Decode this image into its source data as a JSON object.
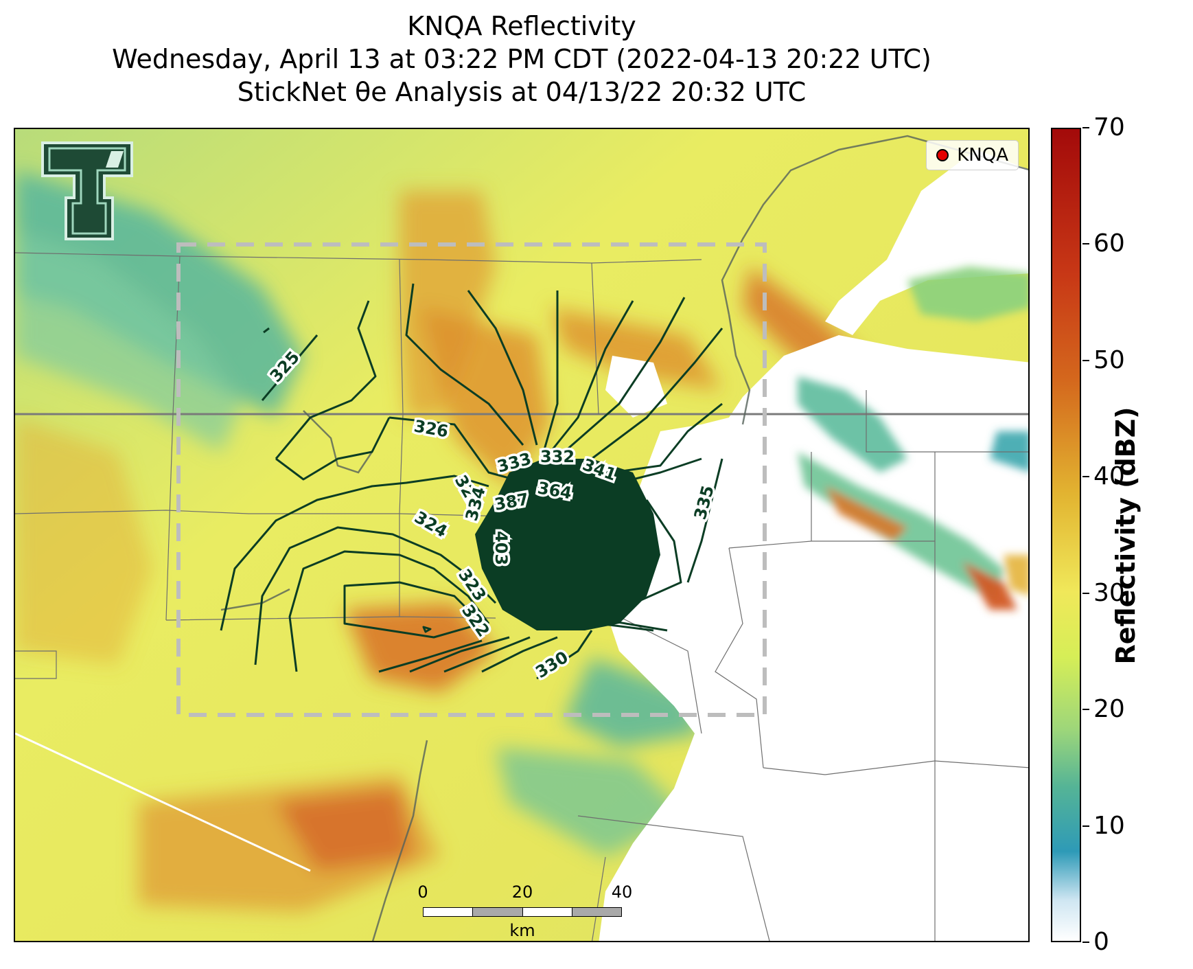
{
  "title": {
    "line1": "KNQA Reflectivity",
    "line2": "Wednesday, April 13 at 03:22 PM CDT (2022-04-13 20:22 UTC)",
    "line3": "StickNet θe Analysis at 04/13/22 20:32 UTC"
  },
  "legend": {
    "label": "KNQA",
    "marker_color": "#e50000"
  },
  "colorbar": {
    "title": "Reflectivity (dBZ)",
    "ticks": [
      "0",
      "10",
      "20",
      "30",
      "40",
      "50",
      "60",
      "70"
    ],
    "range": [
      0,
      70
    ],
    "colors": [
      "#ffffff",
      "#2e9ab7",
      "#55b496",
      "#d6ee57",
      "#e2b431",
      "#d4681d",
      "#a30a0a"
    ]
  },
  "scalebar": {
    "ticks": [
      "0",
      "20",
      "40"
    ],
    "unit": "km"
  },
  "contour_labels": [
    "325",
    "326",
    "327",
    "333",
    "332",
    "341",
    "364",
    "387",
    "334",
    "324",
    "403",
    "323",
    "322",
    "330",
    "335"
  ],
  "colors": {
    "contour": "#0b3d24",
    "analysis_box": "#bdbdbd",
    "logo": "#1e4a35"
  }
}
